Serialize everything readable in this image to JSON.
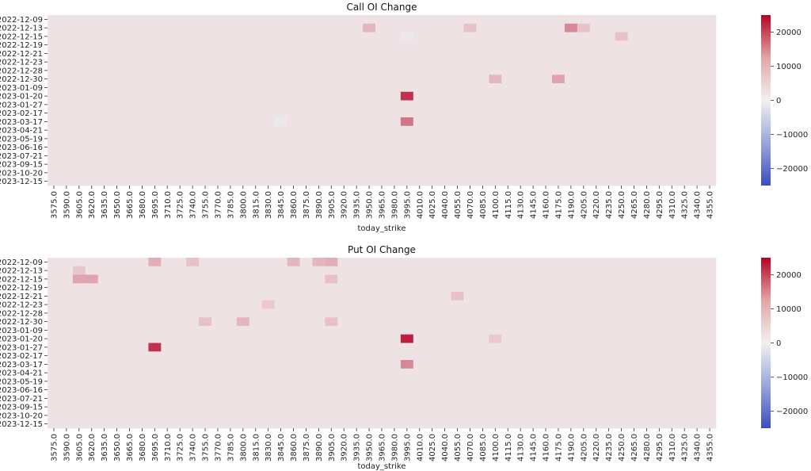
{
  "palette": {
    "neg_extreme": "#3b4cc0",
    "neutral": "#f2f0f0",
    "pos_extreme": "#b40426",
    "base_cell": "#fbeeec"
  },
  "chart_data": [
    {
      "type": "heatmap",
      "title": "Call OI Change",
      "xlabel": "today_strike",
      "ylabel": "",
      "x_tick_labels": [
        "3575.0",
        "3590.0",
        "3605.0",
        "3620.0",
        "3635.0",
        "3650.0",
        "3665.0",
        "3680.0",
        "3695.0",
        "3710.0",
        "3725.0",
        "3740.0",
        "3755.0",
        "3770.0",
        "3785.0",
        "3800.0",
        "3815.0",
        "3830.0",
        "3845.0",
        "3860.0",
        "3875.0",
        "3890.0",
        "3905.0",
        "3920.0",
        "3935.0",
        "3950.0",
        "3965.0",
        "3980.0",
        "3995.0",
        "4010.0",
        "4025.0",
        "4040.0",
        "4055.0",
        "4070.0",
        "4085.0",
        "4100.0",
        "4115.0",
        "4130.0",
        "4145.0",
        "4160.0",
        "4175.0",
        "4190.0",
        "4205.0",
        "4220.0",
        "4235.0",
        "4250.0",
        "4265.0",
        "4280.0",
        "4295.0",
        "4310.0",
        "4325.0",
        "4340.0",
        "4355.0"
      ],
      "y_tick_labels": [
        "2022-12-09",
        "2022-12-13",
        "2022-12-15",
        "2022-12-19",
        "2022-12-21",
        "2022-12-23",
        "2022-12-28",
        "2022-12-30",
        "2023-01-09",
        "2023-01-20",
        "2023-01-27",
        "2023-02-17",
        "2023-03-17",
        "2023-04-21",
        "2023-05-19",
        "2023-06-16",
        "2023-07-21",
        "2023-09-15",
        "2023-10-20",
        "2023-12-15"
      ],
      "base_value": 1500,
      "highlight_cells": [
        {
          "strike": "3995.0",
          "expiry": "2023-01-20",
          "value": 20000
        },
        {
          "strike": "3995.0",
          "expiry": "2023-03-17",
          "value": 13000
        },
        {
          "strike": "4190.0",
          "expiry": "2022-12-13",
          "value": 11000
        },
        {
          "strike": "4175.0",
          "expiry": "2022-12-30",
          "value": 8000
        },
        {
          "strike": "3950.0",
          "expiry": "2022-12-13",
          "value": 6000
        },
        {
          "strike": "4100.0",
          "expiry": "2022-12-30",
          "value": 6000
        },
        {
          "strike": "4205.0",
          "expiry": "2022-12-13",
          "value": 5000
        },
        {
          "strike": "4070.0",
          "expiry": "2022-12-13",
          "value": 5000
        },
        {
          "strike": "4250.0",
          "expiry": "2022-12-15",
          "value": 5000
        },
        {
          "strike": "3995.0",
          "expiry": "2022-12-15",
          "value": -1000
        },
        {
          "strike": "3845.0",
          "expiry": "2023-03-17",
          "value": -1000
        }
      ],
      "colorbar": {
        "range": [
          -25000,
          25000
        ],
        "ticks": [
          20000,
          10000,
          0,
          -10000,
          -20000
        ]
      }
    },
    {
      "type": "heatmap",
      "title": "Put OI Change",
      "xlabel": "today_strike",
      "ylabel": "",
      "x_tick_labels": [
        "3575.0",
        "3590.0",
        "3605.0",
        "3620.0",
        "3635.0",
        "3650.0",
        "3665.0",
        "3680.0",
        "3695.0",
        "3710.0",
        "3725.0",
        "3740.0",
        "3755.0",
        "3770.0",
        "3785.0",
        "3800.0",
        "3815.0",
        "3830.0",
        "3845.0",
        "3860.0",
        "3875.0",
        "3890.0",
        "3905.0",
        "3920.0",
        "3935.0",
        "3950.0",
        "3965.0",
        "3980.0",
        "3995.0",
        "4010.0",
        "4025.0",
        "4040.0",
        "4055.0",
        "4070.0",
        "4085.0",
        "4100.0",
        "4115.0",
        "4130.0",
        "4145.0",
        "4160.0",
        "4175.0",
        "4190.0",
        "4205.0",
        "4220.0",
        "4235.0",
        "4250.0",
        "4265.0",
        "4280.0",
        "4295.0",
        "4310.0",
        "4325.0",
        "4340.0",
        "4355.0"
      ],
      "y_tick_labels": [
        "2022-12-09",
        "2022-12-13",
        "2022-12-15",
        "2022-12-19",
        "2022-12-21",
        "2022-12-23",
        "2022-12-28",
        "2022-12-30",
        "2023-01-09",
        "2023-01-20",
        "2023-01-27",
        "2023-02-17",
        "2023-03-17",
        "2023-04-21",
        "2023-05-19",
        "2023-06-16",
        "2023-07-21",
        "2023-09-15",
        "2023-10-20",
        "2023-12-15"
      ],
      "base_value": 1500,
      "highlight_cells": [
        {
          "strike": "3995.0",
          "expiry": "2023-01-20",
          "value": 22000
        },
        {
          "strike": "3695.0",
          "expiry": "2023-01-27",
          "value": 20000
        },
        {
          "strike": "3995.0",
          "expiry": "2023-03-17",
          "value": 11000
        },
        {
          "strike": "3605.0",
          "expiry": "2022-12-15",
          "value": 8000
        },
        {
          "strike": "3620.0",
          "expiry": "2022-12-15",
          "value": 8000
        },
        {
          "strike": "3695.0",
          "expiry": "2022-12-09",
          "value": 7000
        },
        {
          "strike": "3905.0",
          "expiry": "2022-12-09",
          "value": 7000
        },
        {
          "strike": "3860.0",
          "expiry": "2022-12-09",
          "value": 6000
        },
        {
          "strike": "3890.0",
          "expiry": "2022-12-09",
          "value": 6000
        },
        {
          "strike": "3800.0",
          "expiry": "2022-12-30",
          "value": 6000
        },
        {
          "strike": "3905.0",
          "expiry": "2022-12-30",
          "value": 5000
        },
        {
          "strike": "3755.0",
          "expiry": "2022-12-30",
          "value": 5000
        },
        {
          "strike": "4055.0",
          "expiry": "2022-12-21",
          "value": 5000
        },
        {
          "strike": "3905.0",
          "expiry": "2022-12-15",
          "value": 5000
        },
        {
          "strike": "3740.0",
          "expiry": "2022-12-09",
          "value": 5000
        },
        {
          "strike": "3605.0",
          "expiry": "2022-12-13",
          "value": 4500
        },
        {
          "strike": "3830.0",
          "expiry": "2022-12-23",
          "value": 4000
        },
        {
          "strike": "4100.0",
          "expiry": "2023-01-20",
          "value": 4000
        }
      ],
      "colorbar": {
        "range": [
          -25000,
          25000
        ],
        "ticks": [
          20000,
          10000,
          0,
          -10000,
          -20000
        ]
      }
    }
  ]
}
